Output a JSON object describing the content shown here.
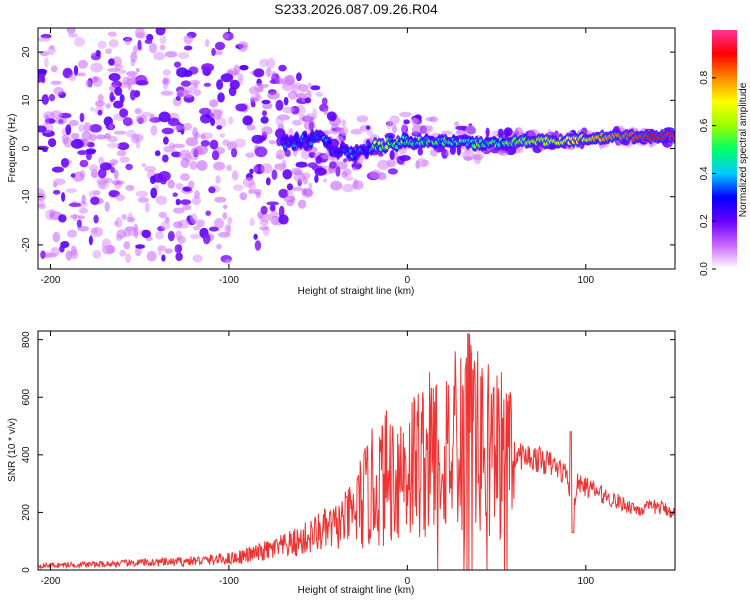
{
  "title": "S233.2026.087.09.26.R04",
  "chart_data": [
    {
      "type": "heatmap",
      "xlabel": "Height of straight line (km)",
      "ylabel": "Frequency (Hz)",
      "xlim": [
        -207,
        150
      ],
      "ylim": [
        -25,
        25
      ],
      "x_ticks": [
        -200,
        -100,
        0,
        100
      ],
      "x_tick_labels": [
        "-200",
        "-100",
        "0",
        "100"
      ],
      "y_ticks": [
        -20,
        -10,
        0,
        10,
        20
      ],
      "y_tick_labels": [
        "-20",
        "-10",
        "0",
        "10",
        "20"
      ],
      "colorbar": {
        "label": "Normalized spectral amplitude",
        "range": [
          0,
          1
        ],
        "ticks": [
          0,
          0.2,
          0.4,
          0.6,
          0.8
        ],
        "tick_labels": [
          "0.0",
          "0.2",
          "0.4",
          "0.6",
          "0.8"
        ],
        "colors": [
          "#ffffff",
          "#cc66ff",
          "#6600ff",
          "#0000ff",
          "#00ccff",
          "#00ff66",
          "#99ff00",
          "#ffff00",
          "#ff8800",
          "#ff0000",
          "#ff3399"
        ]
      },
      "ridge": {
        "x": [
          -130,
          -110,
          -90,
          -70,
          -50,
          -40,
          -30,
          -20,
          -10,
          0,
          20,
          40,
          60,
          80,
          100,
          120,
          150
        ],
        "freq": [
          2,
          1,
          0,
          1,
          2,
          0,
          -1,
          0,
          1,
          1.5,
          1.5,
          1,
          1.5,
          1.5,
          2,
          2.5,
          2.5
        ]
      }
    },
    {
      "type": "line",
      "xlabel": "Height of straight line (km)",
      "ylabel": "SNR (10 * v/v)",
      "xlim": [
        -207,
        150
      ],
      "ylim": [
        0,
        830
      ],
      "x_ticks": [
        -200,
        -100,
        0,
        100
      ],
      "x_tick_labels": [
        "-200",
        "-100",
        "0",
        "100"
      ],
      "y_ticks": [
        0,
        200,
        400,
        600,
        800
      ],
      "y_tick_labels": [
        "0",
        "200",
        "400",
        "600",
        "800"
      ],
      "series": [
        {
          "name": "SNR",
          "color": "#ee3333",
          "x": [
            -207,
            -190,
            -170,
            -150,
            -130,
            -110,
            -100,
            -90,
            -80,
            -70,
            -60,
            -50,
            -40,
            -30,
            -20,
            -10,
            0,
            10,
            20,
            30,
            35,
            40,
            50,
            60,
            70,
            80,
            85,
            90,
            92,
            95,
            100,
            110,
            120,
            130,
            140,
            150
          ],
          "values": [
            15,
            18,
            20,
            25,
            28,
            35,
            40,
            50,
            65,
            80,
            100,
            130,
            150,
            200,
            280,
            330,
            360,
            390,
            420,
            450,
            480,
            430,
            420,
            400,
            390,
            370,
            350,
            330,
            160,
            300,
            290,
            260,
            230,
            210,
            220,
            200
          ]
        }
      ]
    }
  ]
}
